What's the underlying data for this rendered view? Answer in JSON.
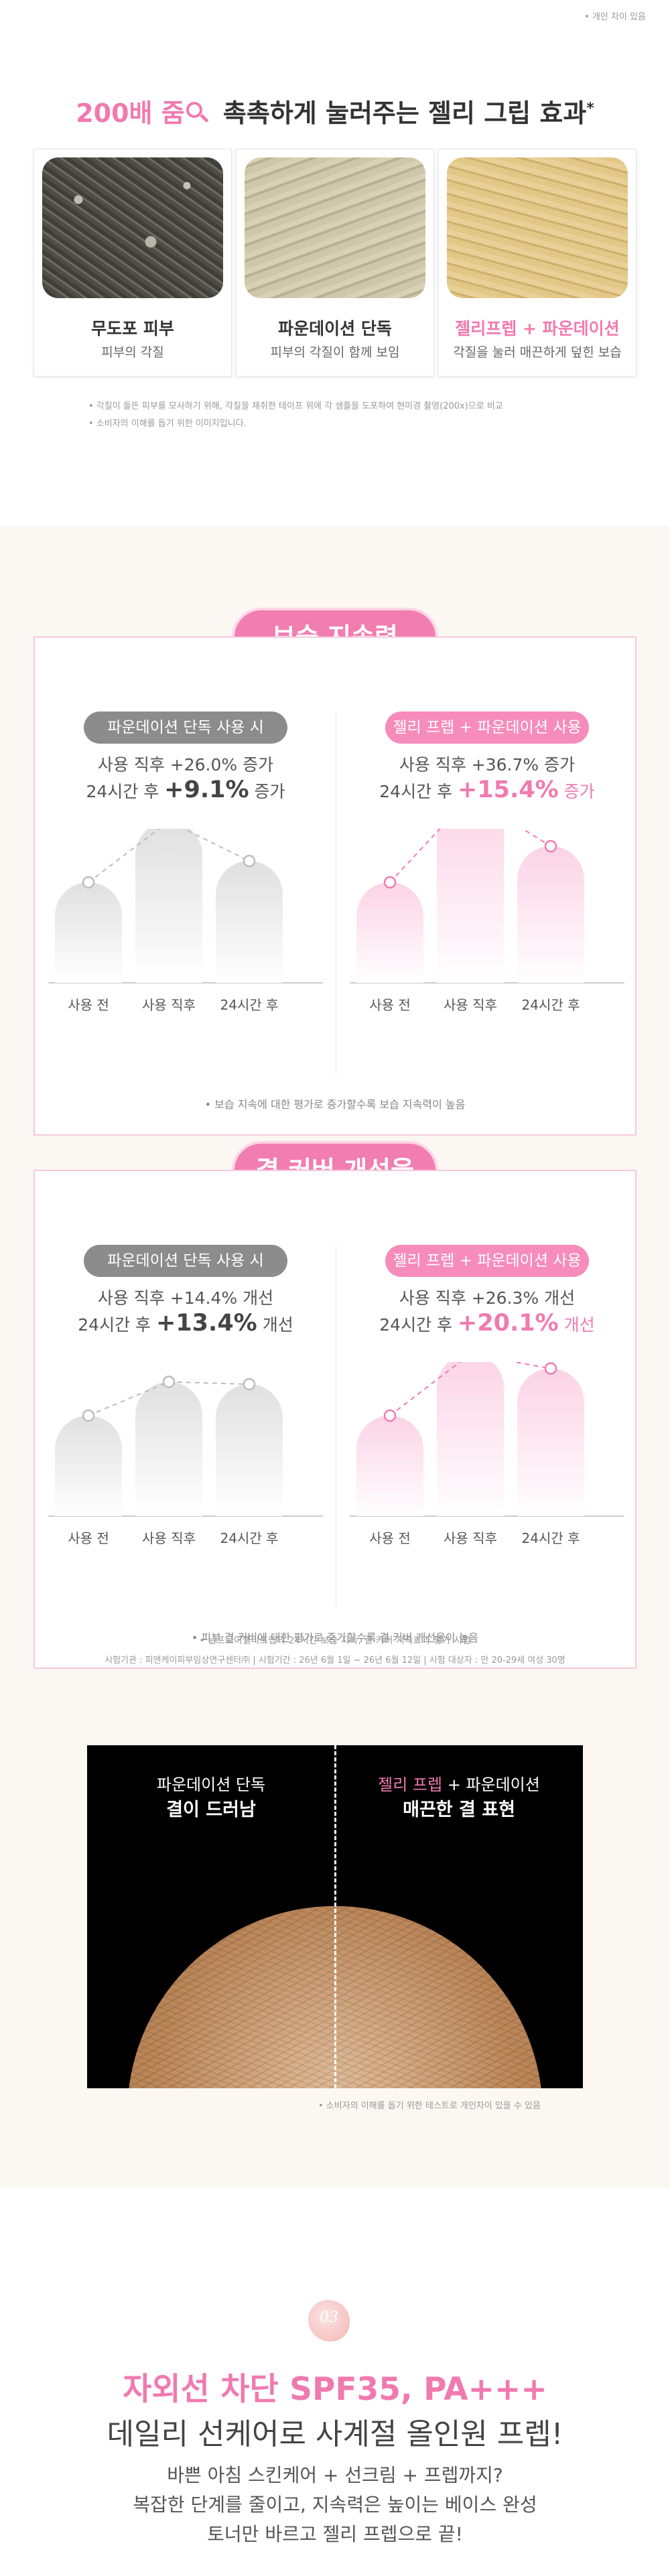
{
  "top_note": "• 개인 차이 있음",
  "headline": {
    "zoom": "200배 줌",
    "text": "촉촉하게 눌러주는 젤리 그립 효과",
    "mark": "*"
  },
  "cards": [
    {
      "title": "무도포 피부",
      "title_pink": "",
      "title_plus": "",
      "title_tail": "",
      "sub": "피부의 각질"
    },
    {
      "title": "파운데이션 단독",
      "title_pink": "",
      "title_plus": "",
      "title_tail": "",
      "sub": "피부의 각질이 함께 보임"
    },
    {
      "title": "",
      "title_pink": "젤리프렙",
      "title_plus": " + ",
      "title_tail": "파운데이션",
      "sub": "각질을 눌러 매끈하게 덮힌 보습"
    }
  ],
  "footnotes1": [
    "• 각질이 들뜬 피부를 모사하기 위해, 각질을 채취한 테이프 위에 각 샘플을 도포하여 현미경 촬영(200x)으로 비교",
    "• 소비자의 이해를 돕기 위한 이미지입니다."
  ],
  "moisture": {
    "title": "보습 지속력",
    "left": {
      "tag": "파운데이션 단독 사용 시",
      "line1": "사용 직후 +26.0% 증가",
      "line2_prefix": "24시간 후 ",
      "line2_value": "+9.1%",
      "line2_suffix": " 증가"
    },
    "right": {
      "tag": "젤리 프렙 + 파운데이션 사용 시",
      "line1": "사용 직후 +36.7% 증가",
      "line2_prefix": "24시간 후 ",
      "line2_value": "+15.4%",
      "line2_suffix": " 증가"
    },
    "footnote": "• 보습 지속에 대한 평가로 증가할수록 보습 지속력이 높음"
  },
  "texture": {
    "title": "결 커버 개선율",
    "left": {
      "tag": "파운데이션 단독 사용 시",
      "line1": "사용 직후 +14.4% 개선",
      "line2_prefix": "24시간 후 ",
      "line2_value": "+13.4%",
      "line2_suffix": " 개선"
    },
    "right": {
      "tag": "젤리 프렙 + 파운데이션 사용 시",
      "line1": "사용 직후 +26.3% 개선",
      "line2_prefix": "24시간 후 ",
      "line2_value": "+20.1%",
      "line2_suffix": " 개선"
    },
    "footnote": "• 피부 결 커버에 대한 평가로 증가할수록 결 커버 개선율이 높음"
  },
  "chart_data": [
    {
      "type": "bar",
      "categories": [
        "사용 전",
        "사용 직후",
        "24시간 후"
      ],
      "values": [
        0,
        26.0,
        9.1
      ],
      "series_name": "파운데이션 단독 사용 시",
      "colors": [
        "#e0e0e0",
        "#bdbdbd"
      ]
    },
    {
      "type": "bar",
      "categories": [
        "사용 전",
        "사용 직후",
        "24시간 후"
      ],
      "values": [
        0,
        36.7,
        15.4
      ],
      "series_name": "젤리 프렙 + 파운데이션 사용 시",
      "colors": [
        "#fbd3e6",
        "#f07ab0"
      ]
    },
    {
      "type": "bar",
      "categories": [
        "사용 전",
        "사용 직후",
        "24시간 후"
      ],
      "values": [
        0,
        14.4,
        13.4
      ],
      "series_name": "파운데이션 단독 사용 시",
      "colors": [
        "#e0e0e0",
        "#bdbdbd"
      ]
    },
    {
      "type": "bar",
      "categories": [
        "사용 전",
        "사용 직후",
        "24시간 후"
      ],
      "values": [
        0,
        26.3,
        20.1
      ],
      "series_name": "젤리 프렙 + 파운데이션 사용 시",
      "colors": [
        "#fbd3e6",
        "#f07ab0"
      ]
    }
  ],
  "study_notes": [
    "• 닐프로이젤리프렙의 24시간 보습 지속, 결 커버 지속효과 평가 시험",
    "시험기관 : 피앤케이피부임상연구센터㈜  |  시험기간 : 26년 6월 1일 ~ 26년 6월 12일  |  시험 대상자 : 만 20-29세 여성 30명"
  ],
  "photo": {
    "left_line1": "파운데이션 단독",
    "left_line2": "결이 드러남",
    "right_pink": "젤리 프렙",
    "right_plus": " + 파운데이션",
    "right_line2": "매끈한 결 표현",
    "footnote": "• 소비자의 이해를 돕기 위한 테스트로 개인차이 있을 수 있음"
  },
  "section3": {
    "badge": "03",
    "headline": "자외선 차단 SPF35, PA+++",
    "subhead": "데일리 선케어로 사계절 올인원 프렙!",
    "para": [
      "바쁜 아침 스킨케어 + 선크림 + 프렙까지?",
      "복잡한 단계를 줄이고, 지속력은 높이는 베이스 완성",
      "토너만 바르고 젤리 프렙으로 끝!"
    ]
  }
}
